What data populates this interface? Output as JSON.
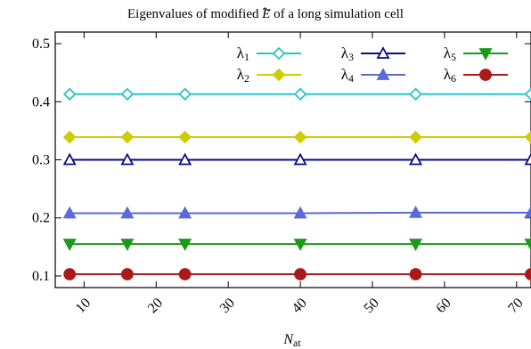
{
  "chart_data": {
    "type": "line",
    "title_prefix": "Eigenvalues of modified ",
    "title_symbol": "E",
    "title_suffix": " of a long simulation cell",
    "xlabel_main": "N",
    "xlabel_sub": "at",
    "xlim": [
      6,
      72
    ],
    "ylim": [
      0.08,
      0.52
    ],
    "xticks": [
      10,
      20,
      30,
      40,
      50,
      60,
      70
    ],
    "yticks": [
      0.1,
      0.2,
      0.3,
      0.4,
      0.5
    ],
    "x": [
      8,
      16,
      24,
      40,
      56,
      72
    ],
    "series": [
      {
        "name": "λ",
        "sub": "1",
        "color": "#26c6c6",
        "marker": "diamond-open",
        "values": [
          0.413,
          0.413,
          0.413,
          0.413,
          0.413,
          0.413
        ]
      },
      {
        "name": "λ",
        "sub": "2",
        "color": "#cccc00",
        "marker": "diamond-filled",
        "values": [
          0.339,
          0.339,
          0.339,
          0.339,
          0.339,
          0.339
        ]
      },
      {
        "name": "λ",
        "sub": "3",
        "color": "#0a0a8c",
        "marker": "triangle-open",
        "values": [
          0.3,
          0.3,
          0.3,
          0.3,
          0.3,
          0.3
        ]
      },
      {
        "name": "λ",
        "sub": "4",
        "color": "#5a6ad6",
        "marker": "triangle-filled",
        "values": [
          0.208,
          0.208,
          0.208,
          0.208,
          0.209,
          0.209
        ]
      },
      {
        "name": "λ",
        "sub": "5",
        "color": "#1a9a1a",
        "marker": "triangle-down-filled",
        "values": [
          0.155,
          0.155,
          0.155,
          0.155,
          0.155,
          0.155
        ]
      },
      {
        "name": "λ",
        "sub": "6",
        "color": "#aa1a1a",
        "marker": "circle-filled",
        "values": [
          0.103,
          0.103,
          0.103,
          0.103,
          0.103,
          0.103
        ]
      }
    ],
    "grid": false,
    "legend_position": "top-right"
  }
}
